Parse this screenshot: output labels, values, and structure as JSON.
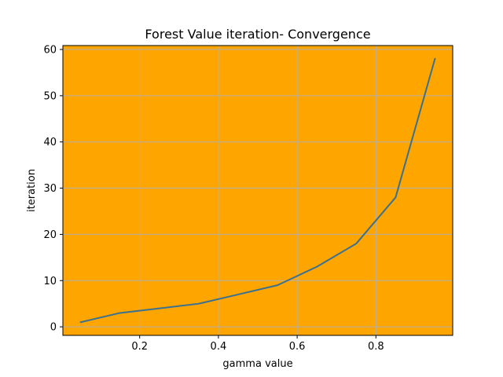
{
  "chart_data": {
    "type": "line",
    "title": "Forest  Value iteration- Convergence",
    "xlabel": "gamma value",
    "ylabel": "iteration",
    "x": [
      0.05,
      0.15,
      0.25,
      0.35,
      0.45,
      0.55,
      0.65,
      0.75,
      0.85,
      0.95
    ],
    "series": [
      {
        "values": [
          1,
          3,
          4,
          5,
          7,
          9,
          13,
          18,
          28,
          58
        ]
      }
    ],
    "xlim": [
      0.005,
      0.995
    ],
    "ylim": [
      -1.85,
      60.85
    ],
    "xticks": [
      0.2,
      0.4,
      0.6,
      0.8
    ],
    "xtick_labels": [
      "0.2",
      "0.4",
      "0.6",
      "0.8"
    ],
    "yticks": [
      0,
      10,
      20,
      30,
      40,
      50,
      60
    ],
    "ytick_labels": [
      "0",
      "10",
      "20",
      "30",
      "40",
      "50",
      "60"
    ],
    "grid": true,
    "colors": {
      "plot_background": "#ffa500",
      "line": "#3a7090",
      "grid": "#b0b0b0",
      "axes": "#000000"
    }
  }
}
